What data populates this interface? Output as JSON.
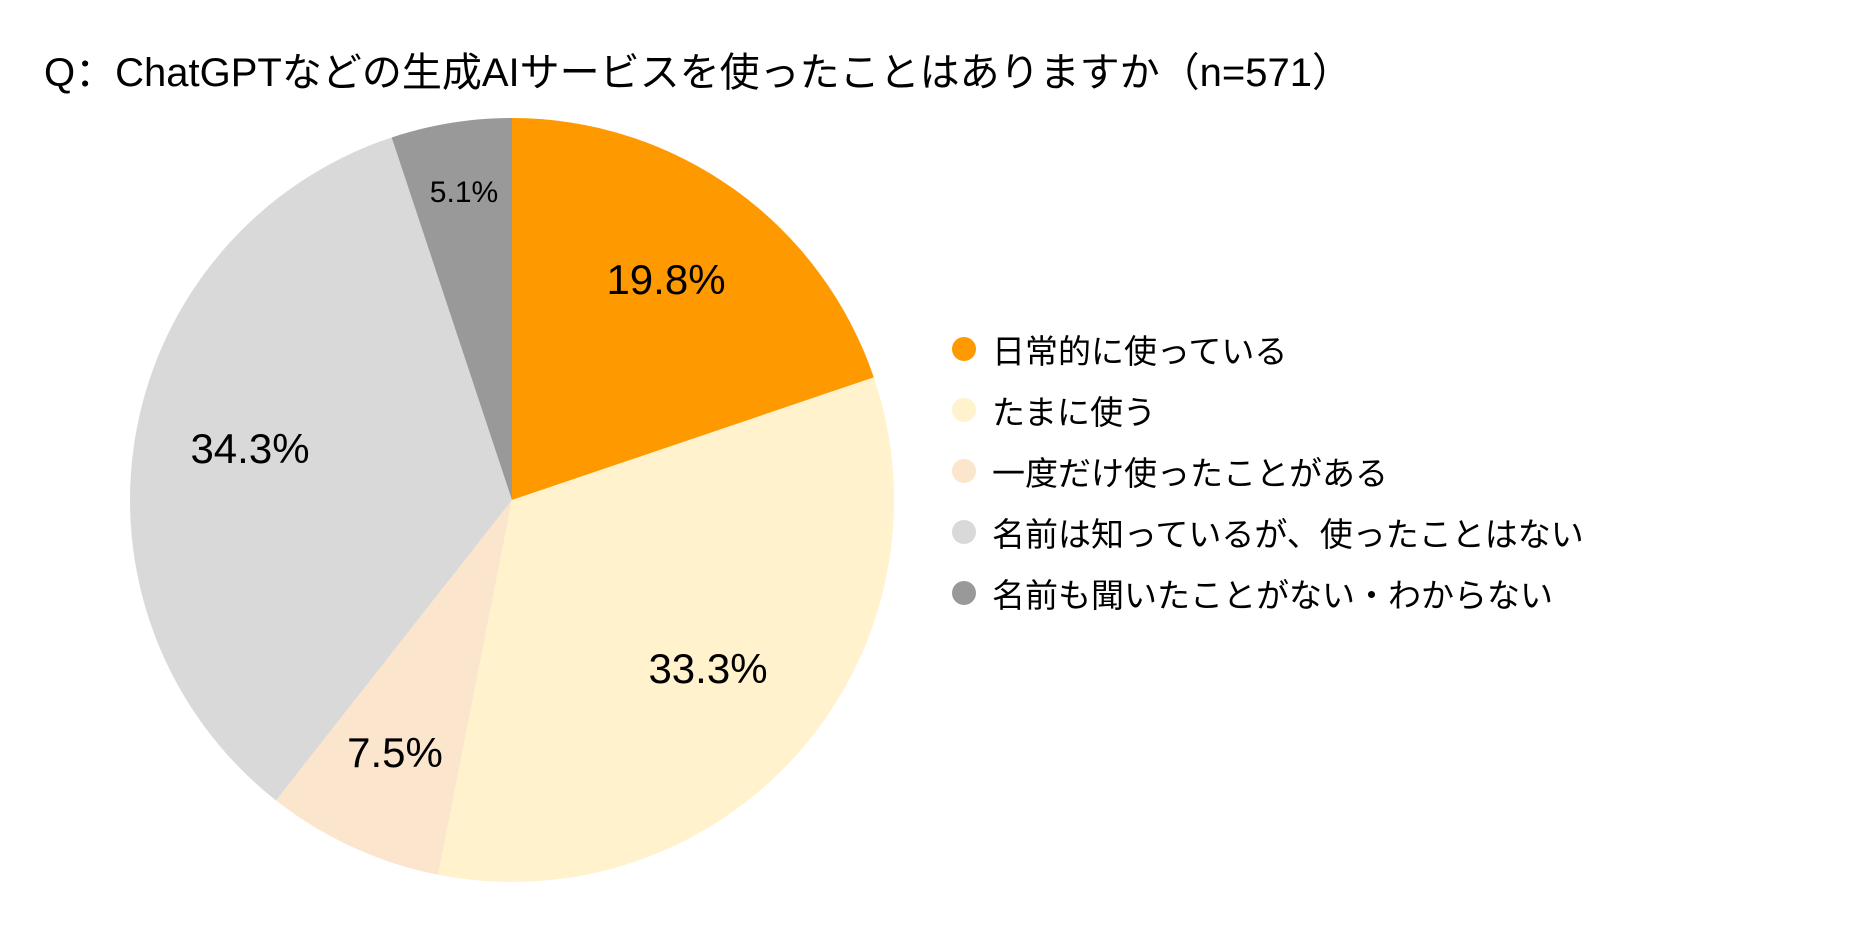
{
  "chart_data": {
    "type": "pie",
    "title": "Q：ChatGPTなどの生成AIサービスを使ったことはありますか（n=571）",
    "slices": [
      {
        "label": "日常的に使っている",
        "value": 19.8,
        "value_label": "19.8%",
        "color": "#FF9900"
      },
      {
        "label": "たまに使う",
        "value": 33.3,
        "value_label": "33.3%",
        "color": "#FFF2CC"
      },
      {
        "label": "一度だけ使ったことがある",
        "value": 7.5,
        "value_label": "7.5%",
        "color": "#FCE5CD"
      },
      {
        "label": "名前は知っているが、使ったことはない",
        "value": 34.3,
        "value_label": "34.3%",
        "color": "#D9D9D9"
      },
      {
        "label": "名前も聞いたことがない・わからない",
        "value": 5.1,
        "value_label": "5.1%",
        "color": "#999999"
      }
    ],
    "start_angle": "12 o'clock",
    "direction": "clockwise",
    "legend_position": "right"
  }
}
